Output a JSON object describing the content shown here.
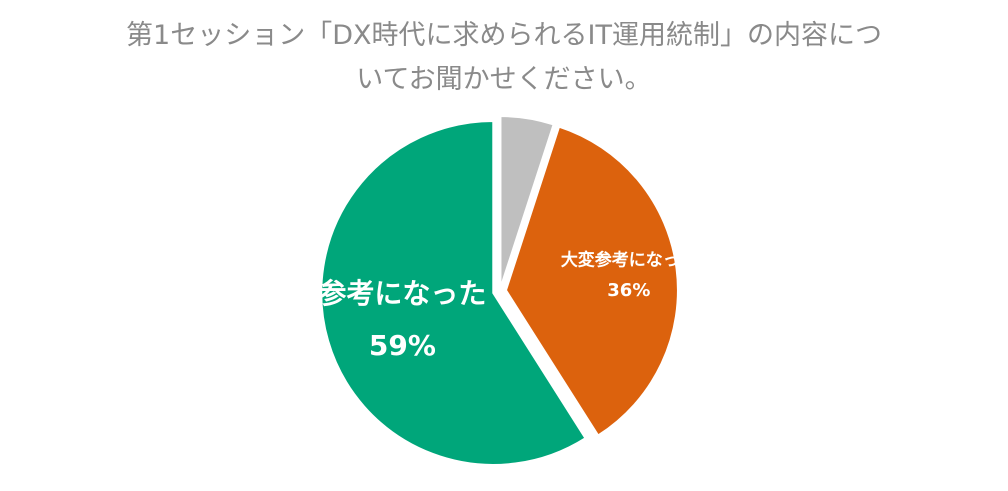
{
  "title": {
    "line1": "第1セッション「DX時代に求められるIT運用統制」の内容につ",
    "line2": "いてお聞かせください。"
  },
  "chart_data": {
    "type": "pie",
    "title": "第1セッション「DX時代に求められるIT運用統制」の内容についてお聞かせください。",
    "slices": [
      {
        "label": "",
        "value": 5,
        "color": "#bfbfbf",
        "show_label": false
      },
      {
        "label": "大変参考になった",
        "value": 36,
        "value_text": "36%",
        "color": "#dc620d",
        "show_label": true
      },
      {
        "label": "参考になった",
        "value": 59,
        "value_text": "59%",
        "color": "#00a67a",
        "show_label": true
      }
    ],
    "legend": "none"
  }
}
